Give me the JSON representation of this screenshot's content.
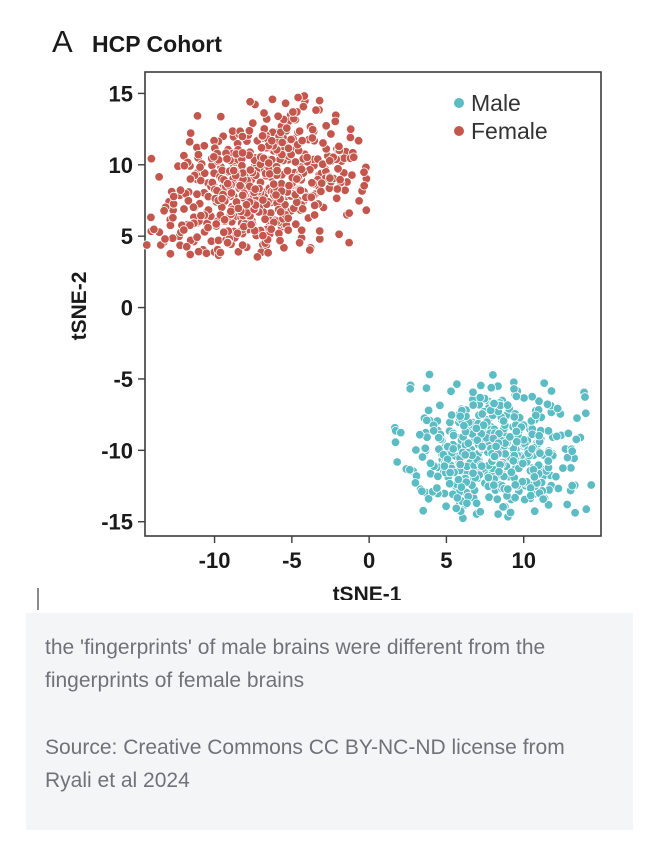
{
  "figure": {
    "panel_letter": "A",
    "panel_title": "HCP Cohort"
  },
  "caption": {
    "text": "the 'fingerprints' of male brains were different from the fingerprints of female brains",
    "source": "Source: Creative Commons CC BY-NC-ND license from Ryali et al 2024"
  },
  "chart_data": {
    "type": "scatter",
    "title": "HCP Cohort",
    "xlabel": "tSNE-1",
    "ylabel": "tSNE-2",
    "xlim": [
      -14.5,
      15
    ],
    "ylim": [
      -16,
      16.5
    ],
    "x_ticks": [
      -10,
      -5,
      0,
      5,
      10
    ],
    "y_ticks": [
      15,
      10,
      5,
      0,
      -5,
      -10,
      -15
    ],
    "grid": false,
    "legend_position": "top-right",
    "series": [
      {
        "name": "Male",
        "color": "#5cbcc4",
        "point_count": 500,
        "x_range": [
          1.5,
          14.5
        ],
        "y_range": [
          -15,
          -4.5
        ],
        "center": [
          8,
          -10
        ]
      },
      {
        "name": "Female",
        "color": "#c4574d",
        "point_count": 600,
        "x_range": [
          -14.5,
          0
        ],
        "y_range": [
          3.5,
          15
        ],
        "center": [
          -7,
          8.5
        ]
      }
    ]
  }
}
